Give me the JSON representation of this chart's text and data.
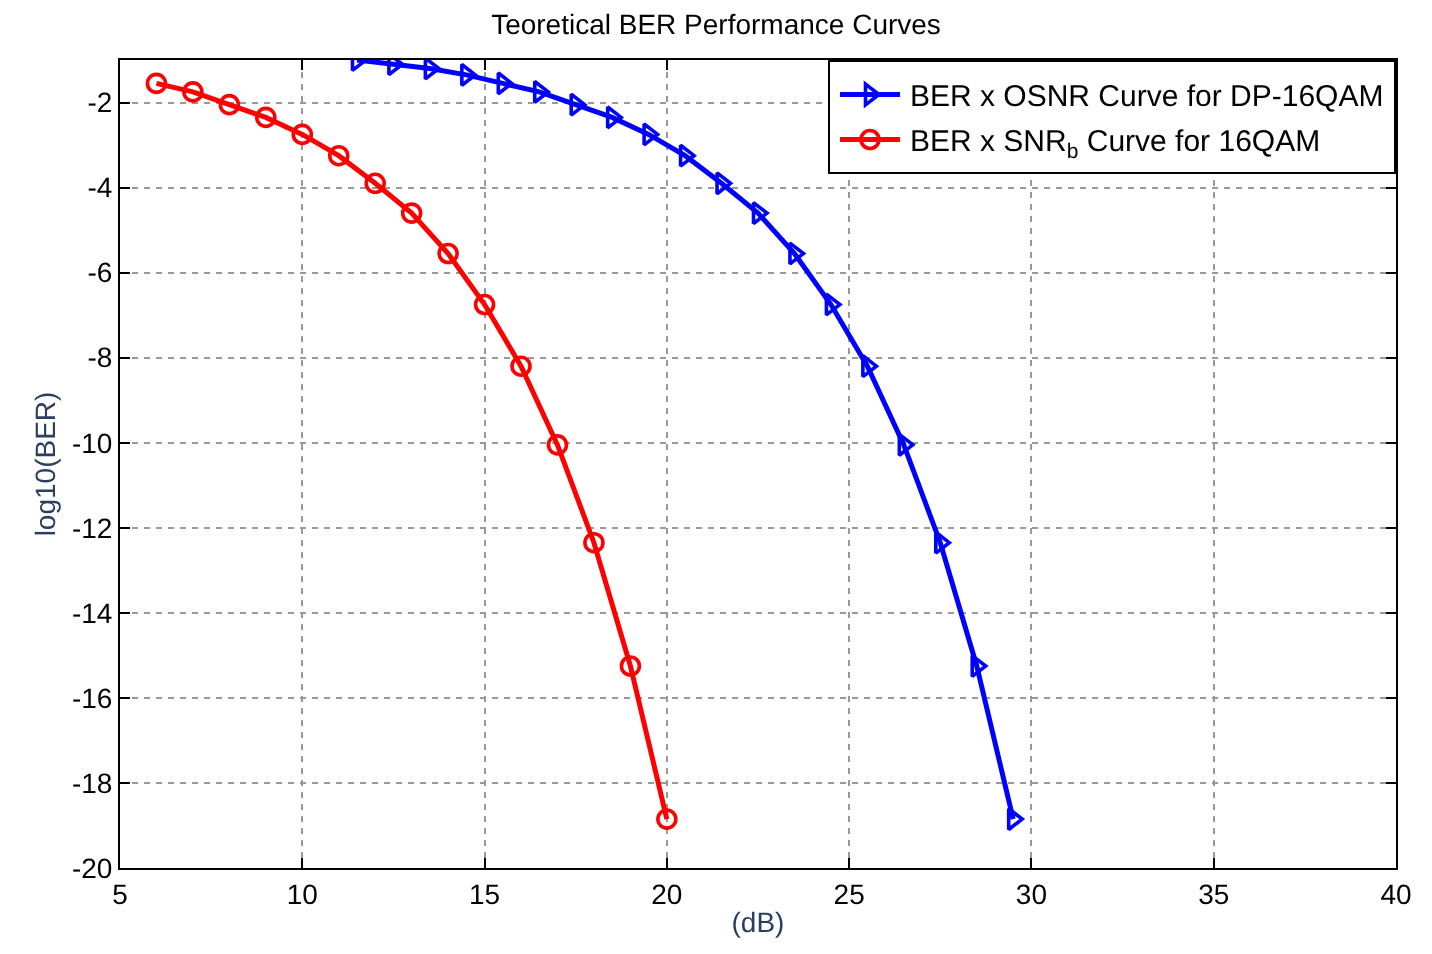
{
  "chart_data": {
    "type": "line",
    "title": "Teoretical BER Performance Curves",
    "xlabel": "(dB)",
    "ylabel": "log10(BER)",
    "xlim": [
      5,
      40
    ],
    "xticks": [
      5,
      10,
      15,
      20,
      25,
      30,
      35,
      40
    ],
    "ylim": [
      -20,
      -1
    ],
    "yticks": [
      -20,
      -18,
      -16,
      -14,
      -12,
      -10,
      -8,
      -6,
      -4,
      -2
    ],
    "grid": true,
    "legend": "top right",
    "line_style": "solid",
    "series": [
      {
        "name": "BER x OSNR Curve for DP-16QAM",
        "color": "#0000ff",
        "marker": "triangle",
        "x": [
          11.5,
          12.5,
          13.5,
          14.5,
          15.5,
          16.5,
          17.5,
          18.5,
          19.5,
          20.5,
          21.5,
          22.5,
          23.5,
          24.5,
          25.5,
          26.5,
          27.5,
          28.5,
          29.5
        ],
        "values": [
          -1.0,
          -1.1,
          -1.2,
          -1.35,
          -1.55,
          -1.75,
          -2.05,
          -2.35,
          -2.75,
          -3.25,
          -3.9,
          -4.6,
          -5.55,
          -6.75,
          -8.2,
          -10.05,
          -12.35,
          -15.25,
          -18.85
        ]
      },
      {
        "name": "BER x SNR$_{b}$ Curve for 16QAM",
        "color": "#ff0000",
        "marker": "circle",
        "x": [
          6,
          7,
          8,
          9,
          10,
          11,
          12,
          13,
          14,
          15,
          16,
          17,
          18,
          19,
          20
        ],
        "values": [
          -1.55,
          -1.75,
          -2.05,
          -2.35,
          -2.75,
          -3.25,
          -3.9,
          -4.6,
          -5.55,
          -6.75,
          -8.2,
          -10.05,
          -12.35,
          -15.25,
          -18.85
        ]
      }
    ]
  }
}
